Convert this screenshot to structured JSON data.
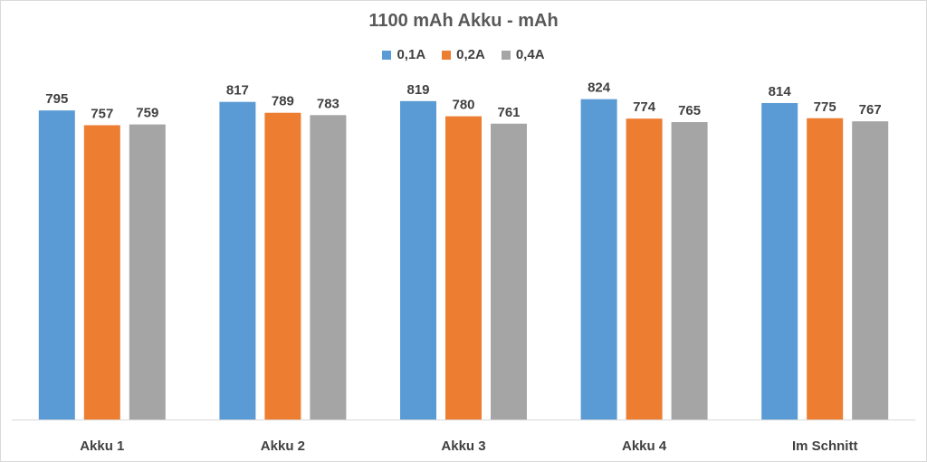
{
  "chart_data": {
    "type": "bar",
    "title": "1100 mAh Akku - mAh",
    "xlabel": "",
    "ylabel": "",
    "categories": [
      "Akku 1",
      "Akku 2",
      "Akku 3",
      "Akku 4",
      "Im Schnitt"
    ],
    "series": [
      {
        "name": "0,1A",
        "color": "#5b9bd5",
        "values": [
          795,
          817,
          819,
          824,
          814
        ]
      },
      {
        "name": "0,2A",
        "color": "#ed7d31",
        "values": [
          757,
          789,
          780,
          774,
          775
        ]
      },
      {
        "name": "0,4A",
        "color": "#a5a5a5",
        "values": [
          759,
          783,
          761,
          765,
          767
        ]
      }
    ],
    "ylim": [
      0,
      900
    ],
    "grid": false,
    "legend_position": "top",
    "data_labels": true
  }
}
